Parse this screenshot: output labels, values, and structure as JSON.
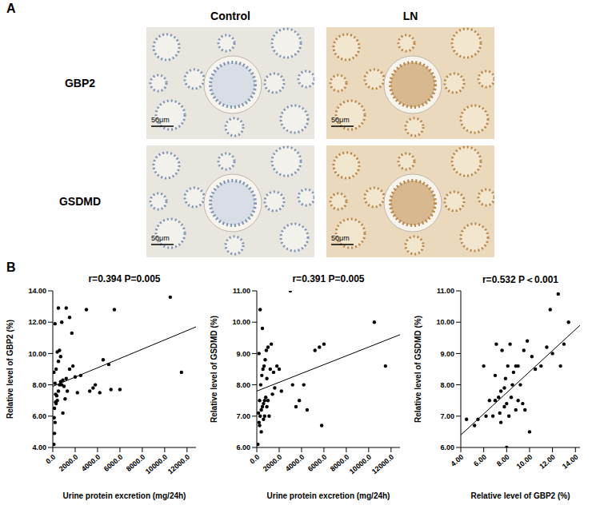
{
  "panel_a": {
    "letter": "A",
    "columns": [
      "Control",
      "LN"
    ],
    "rows": [
      "GBP2",
      "GSDMD"
    ],
    "scale_bar": "50μm"
  },
  "panel_b_letter": "B",
  "chart_data": [
    {
      "type": "scatter",
      "annotation": "r=0.394  P=0.005",
      "x_label": "Urine protein excretion (mg/24h)",
      "y_label": "Relative level of GBP2 (%)",
      "grid": false,
      "xlim": [
        0,
        12800
      ],
      "xticks": [
        {
          "value": 0,
          "label": "0.0"
        },
        {
          "value": 2000,
          "label": "2000.0"
        },
        {
          "value": 4000,
          "label": "4000.0"
        },
        {
          "value": 6000,
          "label": "6000.0"
        },
        {
          "value": 8000,
          "label": "8000.0"
        },
        {
          "value": 10000,
          "label": "10000.0"
        },
        {
          "value": 12000,
          "label": "12000.0"
        }
      ],
      "ylim": [
        4,
        14
      ],
      "yticks": [
        {
          "value": 4,
          "label": "4.00"
        },
        {
          "value": 6,
          "label": "6.00"
        },
        {
          "value": 8,
          "label": "8.00"
        },
        {
          "value": 10,
          "label": "10.00"
        },
        {
          "value": 12,
          "label": "12.00"
        },
        {
          "value": 14,
          "label": "14.00"
        }
      ],
      "series": [
        {
          "type": "scatter",
          "color": "#000000",
          "marker": "circle",
          "x": [
            100,
            150,
            200,
            120,
            300,
            250,
            400,
            500,
            350,
            600,
            200,
            700,
            800,
            900,
            1000,
            1200,
            300,
            500,
            400,
            600,
            700,
            200,
            800,
            500,
            1200,
            1500,
            1700,
            1500,
            1800,
            2000,
            2200,
            2500,
            3000,
            3300,
            3600,
            3800,
            4200,
            4500,
            5000,
            5200,
            5500,
            6000,
            10500,
            11500,
            900,
            1100,
            1300,
            150,
            250,
            100
          ],
          "values": [
            4.2,
            4.9,
            5.6,
            5.9,
            6.8,
            6.9,
            7.0,
            7.6,
            7.3,
            8.0,
            8.1,
            8.2,
            8.0,
            8.3,
            7.9,
            8.4,
            9.0,
            9.5,
            10.1,
            10.2,
            9.8,
            11.9,
            12.0,
            12.9,
            12.9,
            12.3,
            11.3,
            9.0,
            9.2,
            8.5,
            7.5,
            8.6,
            12.8,
            7.6,
            7.8,
            8.0,
            7.5,
            9.6,
            9.3,
            7.7,
            12.8,
            7.7,
            13.6,
            8.8,
            6.2,
            7.1,
            7.6,
            6.5,
            7.4,
            8.8
          ]
        },
        {
          "type": "line",
          "color": "#000000",
          "line_style": "solid",
          "x": [
            0,
            12800
          ],
          "values": [
            7.9,
            11.7
          ]
        }
      ]
    },
    {
      "type": "scatter",
      "annotation": "r=0.391  P=0.005",
      "x_label": "Urine protein excretion (mg/24h)",
      "y_label": "Relative level of GSDMD (%)",
      "grid": false,
      "xlim": [
        0,
        12800
      ],
      "xticks": [
        {
          "value": 0,
          "label": "0.0"
        },
        {
          "value": 2000,
          "label": "2000.0"
        },
        {
          "value": 4000,
          "label": "4000.0"
        },
        {
          "value": 6000,
          "label": "6000.0"
        },
        {
          "value": 8000,
          "label": "8000.0"
        },
        {
          "value": 10000,
          "label": "10000.0"
        },
        {
          "value": 12000,
          "label": "12000.0"
        }
      ],
      "ylim": [
        6,
        11
      ],
      "yticks": [
        {
          "value": 6,
          "label": "6.00"
        },
        {
          "value": 7,
          "label": "7.00"
        },
        {
          "value": 8,
          "label": "8.00"
        },
        {
          "value": 9,
          "label": "9.00"
        },
        {
          "value": 10,
          "label": "10.00"
        },
        {
          "value": 11,
          "label": "11.00"
        }
      ],
      "series": [
        {
          "type": "scatter",
          "color": "#000000",
          "marker": "circle",
          "x": [
            100,
            200,
            300,
            150,
            400,
            500,
            250,
            600,
            700,
            800,
            900,
            1000,
            350,
            450,
            550,
            650,
            750,
            200,
            850,
            1000,
            1200,
            1500,
            1800,
            300,
            500,
            1300,
            2000,
            2200,
            3000,
            3200,
            3500,
            3800,
            4200,
            4500,
            5200,
            5600,
            5800,
            6000,
            10500,
            11500,
            700,
            400,
            1100,
            1400,
            600,
            900,
            1600,
            250
          ],
          "values": [
            6.1,
            6.8,
            7.0,
            7.1,
            7.2,
            7.3,
            7.5,
            7.4,
            7.5,
            7.6,
            7.3,
            7.5,
            8.0,
            8.3,
            8.5,
            8.6,
            8.8,
            9.0,
            9.1,
            9.2,
            8.5,
            8.4,
            8.6,
            10.4,
            9.8,
            9.3,
            8.5,
            7.8,
            11.0,
            8.0,
            7.3,
            7.5,
            8.0,
            7.2,
            9.1,
            9.2,
            6.7,
            9.3,
            10.0,
            8.6,
            7.0,
            6.5,
            7.0,
            7.7,
            6.9,
            8.2,
            7.9,
            6.7
          ]
        },
        {
          "type": "line",
          "color": "#000000",
          "line_style": "solid",
          "x": [
            0,
            12800
          ],
          "values": [
            7.8,
            9.6
          ]
        }
      ]
    },
    {
      "type": "scatter",
      "annotation": "r=0.532  P＜0.001",
      "x_label": "Relative level of GBP2 (%)",
      "y_label": "Relative level of GSDMD (%)",
      "grid": false,
      "xlim": [
        4,
        14.4
      ],
      "xticks": [
        {
          "value": 4,
          "label": "4.00"
        },
        {
          "value": 6,
          "label": "6.00"
        },
        {
          "value": 8,
          "label": "8.00"
        },
        {
          "value": 10,
          "label": "10.00"
        },
        {
          "value": 12,
          "label": "12.00"
        },
        {
          "value": 14,
          "label": "14.00"
        }
      ],
      "ylim": [
        6,
        11
      ],
      "yticks": [
        {
          "value": 6,
          "label": "6.00"
        },
        {
          "value": 7,
          "label": "7.00"
        },
        {
          "value": 8,
          "label": "8.00"
        },
        {
          "value": 9,
          "label": "9.00"
        },
        {
          "value": 10,
          "label": "10.00"
        },
        {
          "value": 11,
          "label": "11.00"
        }
      ],
      "series": [
        {
          "type": "scatter",
          "color": "#000000",
          "marker": "circle",
          "x": [
            4.5,
            5.2,
            5.5,
            6.0,
            6.2,
            6.5,
            6.8,
            7.0,
            7.0,
            7.1,
            7.3,
            7.4,
            7.5,
            7.5,
            7.6,
            7.8,
            7.8,
            7.9,
            8.0,
            8.0,
            8.1,
            8.2,
            8.3,
            8.4,
            8.5,
            8.6,
            8.8,
            8.8,
            9.0,
            9.0,
            9.2,
            9.4,
            9.5,
            9.6,
            9.8,
            10.0,
            10.2,
            10.5,
            11.0,
            11.5,
            11.8,
            12.0,
            12.5,
            12.7,
            13.0,
            13.4
          ],
          "values": [
            6.9,
            6.7,
            6.9,
            8.6,
            7.0,
            7.5,
            7.0,
            7.5,
            8.3,
            9.3,
            7.6,
            7.1,
            6.8,
            7.8,
            9.1,
            7.3,
            7.9,
            8.2,
            6.0,
            7.4,
            8.6,
            7.0,
            9.3,
            7.6,
            8.0,
            8.4,
            8.6,
            7.2,
            7.5,
            8.6,
            8.0,
            7.4,
            9.1,
            7.2,
            9.4,
            6.5,
            8.9,
            8.5,
            8.6,
            9.2,
            10.4,
            9.0,
            10.9,
            8.6,
            9.3,
            10.0
          ]
        },
        {
          "type": "line",
          "color": "#000000",
          "line_style": "solid",
          "x": [
            4,
            14.4
          ],
          "values": [
            6.4,
            9.9
          ]
        }
      ]
    }
  ]
}
